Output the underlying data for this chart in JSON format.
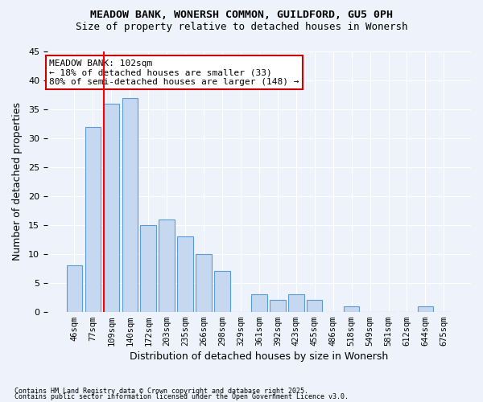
{
  "title_line1": "MEADOW BANK, WONERSH COMMON, GUILDFORD, GU5 0PH",
  "title_line2": "Size of property relative to detached houses in Wonersh",
  "xlabel": "Distribution of detached houses by size in Wonersh",
  "ylabel": "Number of detached properties",
  "categories": [
    "46sqm",
    "77sqm",
    "109sqm",
    "140sqm",
    "172sqm",
    "203sqm",
    "235sqm",
    "266sqm",
    "298sqm",
    "329sqm",
    "361sqm",
    "392sqm",
    "423sqm",
    "455sqm",
    "486sqm",
    "518sqm",
    "549sqm",
    "581sqm",
    "612sqm",
    "644sqm",
    "675sqm"
  ],
  "values": [
    8,
    32,
    36,
    37,
    15,
    16,
    13,
    10,
    7,
    0,
    3,
    2,
    3,
    2,
    0,
    1,
    0,
    0,
    0,
    1,
    0
  ],
  "bar_color": "#c5d8f0",
  "bar_edge_color": "#5b9bd5",
  "background_color": "#eef3fb",
  "grid_color": "#ffffff",
  "red_line_index": 2,
  "annotation_text": "MEADOW BANK: 102sqm\n← 18% of detached houses are smaller (33)\n80% of semi-detached houses are larger (148) →",
  "annotation_box_color": "#ffffff",
  "annotation_box_edge": "#cc0000",
  "annotation_text_size": 8,
  "footnote_line1": "Contains HM Land Registry data © Crown copyright and database right 2025.",
  "footnote_line2": "Contains public sector information licensed under the Open Government Licence v3.0.",
  "ylim": [
    0,
    45
  ],
  "yticks": [
    0,
    5,
    10,
    15,
    20,
    25,
    30,
    35,
    40,
    45
  ]
}
